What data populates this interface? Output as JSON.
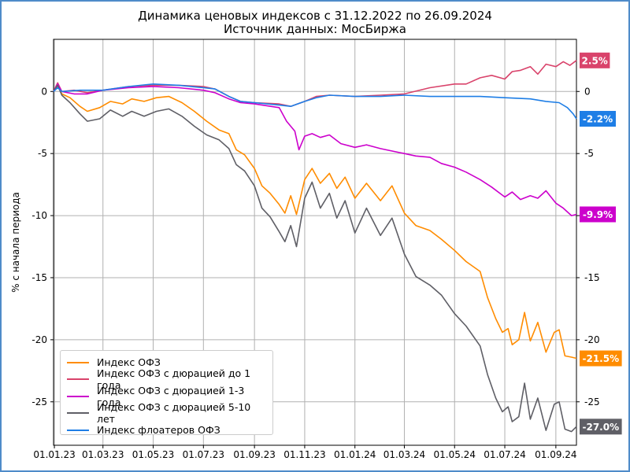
{
  "chart_data": {
    "type": "line",
    "title": "Динамика ценовых индексов с 31.12.2022 по 26.09.2024",
    "subtitle": "Источник данных: МосБиржа",
    "xlabel": "",
    "ylabel": "% с начала периода",
    "ylim": [
      -28.5,
      4.2
    ],
    "xlim": [
      "2022-12-31",
      "2024-09-26"
    ],
    "x_ticks": [
      "01.01.23",
      "01.03.23",
      "01.05.23",
      "01.07.23",
      "01.09.23",
      "01.11.23",
      "01.01.24",
      "01.03.24",
      "01.05.24",
      "01.07.24",
      "01.09.24"
    ],
    "y_ticks_left": [
      "0",
      "-5",
      "-10",
      "-15",
      "-20",
      "-25"
    ],
    "y_ticks_right": [
      "0",
      "-5",
      "-10",
      "-15",
      "-20",
      "-25"
    ],
    "grid": true,
    "legend_position": "lower-left",
    "series": [
      {
        "name": "Индекс ОФЗ",
        "color": "#ff8c00",
        "end_label": "-21.5%",
        "points": [
          [
            "2022-12-31",
            0
          ],
          [
            "2023-01-05",
            0.5
          ],
          [
            "2023-01-10",
            -0.2
          ],
          [
            "2023-01-20",
            -0.5
          ],
          [
            "2023-02-01",
            -1.2
          ],
          [
            "2023-02-10",
            -1.6
          ],
          [
            "2023-02-25",
            -1.3
          ],
          [
            "2023-03-10",
            -0.8
          ],
          [
            "2023-03-25",
            -1.0
          ],
          [
            "2023-04-05",
            -0.6
          ],
          [
            "2023-04-20",
            -0.8
          ],
          [
            "2023-05-05",
            -0.5
          ],
          [
            "2023-05-20",
            -0.4
          ],
          [
            "2023-06-05",
            -0.9
          ],
          [
            "2023-06-20",
            -1.6
          ],
          [
            "2023-07-05",
            -2.4
          ],
          [
            "2023-07-20",
            -3.1
          ],
          [
            "2023-08-01",
            -3.4
          ],
          [
            "2023-08-10",
            -4.7
          ],
          [
            "2023-08-20",
            -5.1
          ],
          [
            "2023-09-01",
            -6.2
          ],
          [
            "2023-09-10",
            -7.6
          ],
          [
            "2023-09-20",
            -8.2
          ],
          [
            "2023-10-01",
            -9.1
          ],
          [
            "2023-10-08",
            -9.8
          ],
          [
            "2023-10-15",
            -8.4
          ],
          [
            "2023-10-22",
            -9.9
          ],
          [
            "2023-11-01",
            -7.1
          ],
          [
            "2023-11-10",
            -6.2
          ],
          [
            "2023-11-20",
            -7.4
          ],
          [
            "2023-12-01",
            -6.6
          ],
          [
            "2023-12-10",
            -7.8
          ],
          [
            "2023-12-20",
            -6.9
          ],
          [
            "2024-01-01",
            -8.6
          ],
          [
            "2024-01-15",
            -7.4
          ],
          [
            "2024-02-01",
            -8.8
          ],
          [
            "2024-02-15",
            -7.6
          ],
          [
            "2024-03-01",
            -9.8
          ],
          [
            "2024-03-15",
            -10.8
          ],
          [
            "2024-04-01",
            -11.2
          ],
          [
            "2024-04-15",
            -11.9
          ],
          [
            "2024-05-01",
            -12.8
          ],
          [
            "2024-05-15",
            -13.7
          ],
          [
            "2024-06-01",
            -14.5
          ],
          [
            "2024-06-10",
            -16.6
          ],
          [
            "2024-06-20",
            -18.3
          ],
          [
            "2024-06-28",
            -19.4
          ],
          [
            "2024-07-05",
            -19.1
          ],
          [
            "2024-07-10",
            -20.4
          ],
          [
            "2024-07-18",
            -20.0
          ],
          [
            "2024-07-25",
            -17.8
          ],
          [
            "2024-08-01",
            -20.1
          ],
          [
            "2024-08-10",
            -18.6
          ],
          [
            "2024-08-20",
            -21.0
          ],
          [
            "2024-08-30",
            -19.4
          ],
          [
            "2024-09-05",
            -19.2
          ],
          [
            "2024-09-12",
            -21.3
          ],
          [
            "2024-09-20",
            -21.4
          ],
          [
            "2024-09-26",
            -21.5
          ]
        ]
      },
      {
        "name": "Индекс ОФЗ с дюрацией до 1 года",
        "color": "#d9436b",
        "end_label": "2.5%",
        "points": [
          [
            "2022-12-31",
            0
          ],
          [
            "2023-01-05",
            0.7
          ],
          [
            "2023-01-10",
            0.0
          ],
          [
            "2023-01-25",
            0.1
          ],
          [
            "2023-02-10",
            -0.1
          ],
          [
            "2023-03-01",
            0.1
          ],
          [
            "2023-04-01",
            0.4
          ],
          [
            "2023-05-01",
            0.5
          ],
          [
            "2023-06-01",
            0.5
          ],
          [
            "2023-07-01",
            0.4
          ],
          [
            "2023-07-15",
            0.2
          ],
          [
            "2023-08-01",
            -0.4
          ],
          [
            "2023-08-15",
            -0.8
          ],
          [
            "2023-09-01",
            -0.9
          ],
          [
            "2023-10-01",
            -1.0
          ],
          [
            "2023-10-15",
            -1.2
          ],
          [
            "2023-11-01",
            -0.8
          ],
          [
            "2023-11-15",
            -0.4
          ],
          [
            "2023-12-01",
            -0.3
          ],
          [
            "2024-01-01",
            -0.4
          ],
          [
            "2024-02-01",
            -0.3
          ],
          [
            "2024-03-01",
            -0.2
          ],
          [
            "2024-04-01",
            0.3
          ],
          [
            "2024-05-01",
            0.6
          ],
          [
            "2024-05-15",
            0.6
          ],
          [
            "2024-06-01",
            1.1
          ],
          [
            "2024-06-15",
            1.3
          ],
          [
            "2024-07-01",
            1.0
          ],
          [
            "2024-07-10",
            1.6
          ],
          [
            "2024-07-20",
            1.7
          ],
          [
            "2024-08-01",
            2.0
          ],
          [
            "2024-08-10",
            1.4
          ],
          [
            "2024-08-20",
            2.2
          ],
          [
            "2024-09-01",
            2.0
          ],
          [
            "2024-09-10",
            2.4
          ],
          [
            "2024-09-18",
            2.1
          ],
          [
            "2024-09-26",
            2.5
          ]
        ]
      },
      {
        "name": "Индекс ОФЗ с дюрацией 1-3 года",
        "color": "#cc00cc",
        "end_label": "-9.9%",
        "points": [
          [
            "2022-12-31",
            0
          ],
          [
            "2023-01-05",
            0.6
          ],
          [
            "2023-01-10",
            0.0
          ],
          [
            "2023-01-25",
            -0.2
          ],
          [
            "2023-02-10",
            -0.2
          ],
          [
            "2023-03-01",
            0.1
          ],
          [
            "2023-04-01",
            0.3
          ],
          [
            "2023-05-01",
            0.4
          ],
          [
            "2023-06-01",
            0.3
          ],
          [
            "2023-07-01",
            0.1
          ],
          [
            "2023-07-15",
            -0.1
          ],
          [
            "2023-08-01",
            -0.6
          ],
          [
            "2023-08-15",
            -0.9
          ],
          [
            "2023-09-01",
            -1.0
          ],
          [
            "2023-10-01",
            -1.3
          ],
          [
            "2023-10-10",
            -2.4
          ],
          [
            "2023-10-20",
            -3.2
          ],
          [
            "2023-10-25",
            -4.7
          ],
          [
            "2023-11-01",
            -3.6
          ],
          [
            "2023-11-10",
            -3.4
          ],
          [
            "2023-11-20",
            -3.7
          ],
          [
            "2023-12-01",
            -3.5
          ],
          [
            "2023-12-15",
            -4.2
          ],
          [
            "2024-01-01",
            -4.5
          ],
          [
            "2024-01-15",
            -4.3
          ],
          [
            "2024-02-01",
            -4.6
          ],
          [
            "2024-03-01",
            -5.0
          ],
          [
            "2024-03-15",
            -5.2
          ],
          [
            "2024-04-01",
            -5.3
          ],
          [
            "2024-04-15",
            -5.8
          ],
          [
            "2024-05-01",
            -6.1
          ],
          [
            "2024-05-15",
            -6.5
          ],
          [
            "2024-06-01",
            -7.1
          ],
          [
            "2024-06-15",
            -7.7
          ],
          [
            "2024-07-01",
            -8.5
          ],
          [
            "2024-07-10",
            -8.1
          ],
          [
            "2024-07-20",
            -8.7
          ],
          [
            "2024-08-01",
            -8.4
          ],
          [
            "2024-08-10",
            -8.6
          ],
          [
            "2024-08-20",
            -8.0
          ],
          [
            "2024-09-01",
            -9.0
          ],
          [
            "2024-09-10",
            -9.4
          ],
          [
            "2024-09-20",
            -10.0
          ],
          [
            "2024-09-26",
            -9.9
          ]
        ]
      },
      {
        "name": "Индекс ОФЗ с дюрацией 5-10 лет",
        "color": "#5f5f66",
        "end_label": "-27.0%",
        "points": [
          [
            "2022-12-31",
            0
          ],
          [
            "2023-01-05",
            0.5
          ],
          [
            "2023-01-10",
            -0.3
          ],
          [
            "2023-01-20",
            -0.9
          ],
          [
            "2023-02-01",
            -1.8
          ],
          [
            "2023-02-10",
            -2.4
          ],
          [
            "2023-02-25",
            -2.2
          ],
          [
            "2023-03-10",
            -1.5
          ],
          [
            "2023-03-25",
            -2.0
          ],
          [
            "2023-04-05",
            -1.6
          ],
          [
            "2023-04-20",
            -2.0
          ],
          [
            "2023-05-05",
            -1.6
          ],
          [
            "2023-05-20",
            -1.4
          ],
          [
            "2023-06-05",
            -2.0
          ],
          [
            "2023-06-20",
            -2.8
          ],
          [
            "2023-07-05",
            -3.5
          ],
          [
            "2023-07-20",
            -3.9
          ],
          [
            "2023-08-01",
            -4.6
          ],
          [
            "2023-08-10",
            -5.9
          ],
          [
            "2023-08-20",
            -6.4
          ],
          [
            "2023-09-01",
            -7.6
          ],
          [
            "2023-09-10",
            -9.4
          ],
          [
            "2023-09-20",
            -10.1
          ],
          [
            "2023-10-01",
            -11.3
          ],
          [
            "2023-10-08",
            -12.1
          ],
          [
            "2023-10-15",
            -10.8
          ],
          [
            "2023-10-22",
            -12.5
          ],
          [
            "2023-11-01",
            -8.6
          ],
          [
            "2023-11-10",
            -7.3
          ],
          [
            "2023-11-20",
            -9.4
          ],
          [
            "2023-12-01",
            -8.2
          ],
          [
            "2023-12-10",
            -10.2
          ],
          [
            "2023-12-20",
            -8.8
          ],
          [
            "2024-01-01",
            -11.4
          ],
          [
            "2024-01-15",
            -9.4
          ],
          [
            "2024-02-01",
            -11.6
          ],
          [
            "2024-02-15",
            -10.2
          ],
          [
            "2024-03-01",
            -13.1
          ],
          [
            "2024-03-15",
            -14.9
          ],
          [
            "2024-04-01",
            -15.6
          ],
          [
            "2024-04-15",
            -16.4
          ],
          [
            "2024-05-01",
            -17.9
          ],
          [
            "2024-05-15",
            -18.9
          ],
          [
            "2024-06-01",
            -20.5
          ],
          [
            "2024-06-10",
            -22.8
          ],
          [
            "2024-06-20",
            -24.7
          ],
          [
            "2024-06-28",
            -25.8
          ],
          [
            "2024-07-05",
            -25.4
          ],
          [
            "2024-07-10",
            -26.6
          ],
          [
            "2024-07-18",
            -26.2
          ],
          [
            "2024-07-25",
            -23.5
          ],
          [
            "2024-08-01",
            -26.4
          ],
          [
            "2024-08-10",
            -24.7
          ],
          [
            "2024-08-20",
            -27.3
          ],
          [
            "2024-08-30",
            -25.2
          ],
          [
            "2024-09-05",
            -25.0
          ],
          [
            "2024-09-12",
            -27.2
          ],
          [
            "2024-09-20",
            -27.4
          ],
          [
            "2024-09-26",
            -27.0
          ]
        ]
      },
      {
        "name": "Индекс флоатеров ОФЗ",
        "color": "#1e7ee6",
        "end_label": "-2.2%",
        "points": [
          [
            "2022-12-31",
            0
          ],
          [
            "2023-01-05",
            0.3
          ],
          [
            "2023-01-10",
            0.0
          ],
          [
            "2023-02-01",
            0.1
          ],
          [
            "2023-03-01",
            0.1
          ],
          [
            "2023-04-01",
            0.4
          ],
          [
            "2023-05-01",
            0.6
          ],
          [
            "2023-06-01",
            0.5
          ],
          [
            "2023-07-01",
            0.3
          ],
          [
            "2023-07-15",
            0.2
          ],
          [
            "2023-08-01",
            -0.4
          ],
          [
            "2023-08-15",
            -0.8
          ],
          [
            "2023-09-01",
            -0.9
          ],
          [
            "2023-10-01",
            -1.1
          ],
          [
            "2023-10-15",
            -1.2
          ],
          [
            "2023-11-01",
            -0.8
          ],
          [
            "2023-11-15",
            -0.5
          ],
          [
            "2023-12-01",
            -0.3
          ],
          [
            "2024-01-01",
            -0.4
          ],
          [
            "2024-02-01",
            -0.4
          ],
          [
            "2024-03-01",
            -0.3
          ],
          [
            "2024-04-01",
            -0.4
          ],
          [
            "2024-05-01",
            -0.4
          ],
          [
            "2024-06-01",
            -0.4
          ],
          [
            "2024-07-01",
            -0.5
          ],
          [
            "2024-08-01",
            -0.6
          ],
          [
            "2024-08-20",
            -0.8
          ],
          [
            "2024-09-05",
            -0.9
          ],
          [
            "2024-09-15",
            -1.3
          ],
          [
            "2024-09-22",
            -1.8
          ],
          [
            "2024-09-26",
            -2.2
          ]
        ]
      }
    ]
  }
}
